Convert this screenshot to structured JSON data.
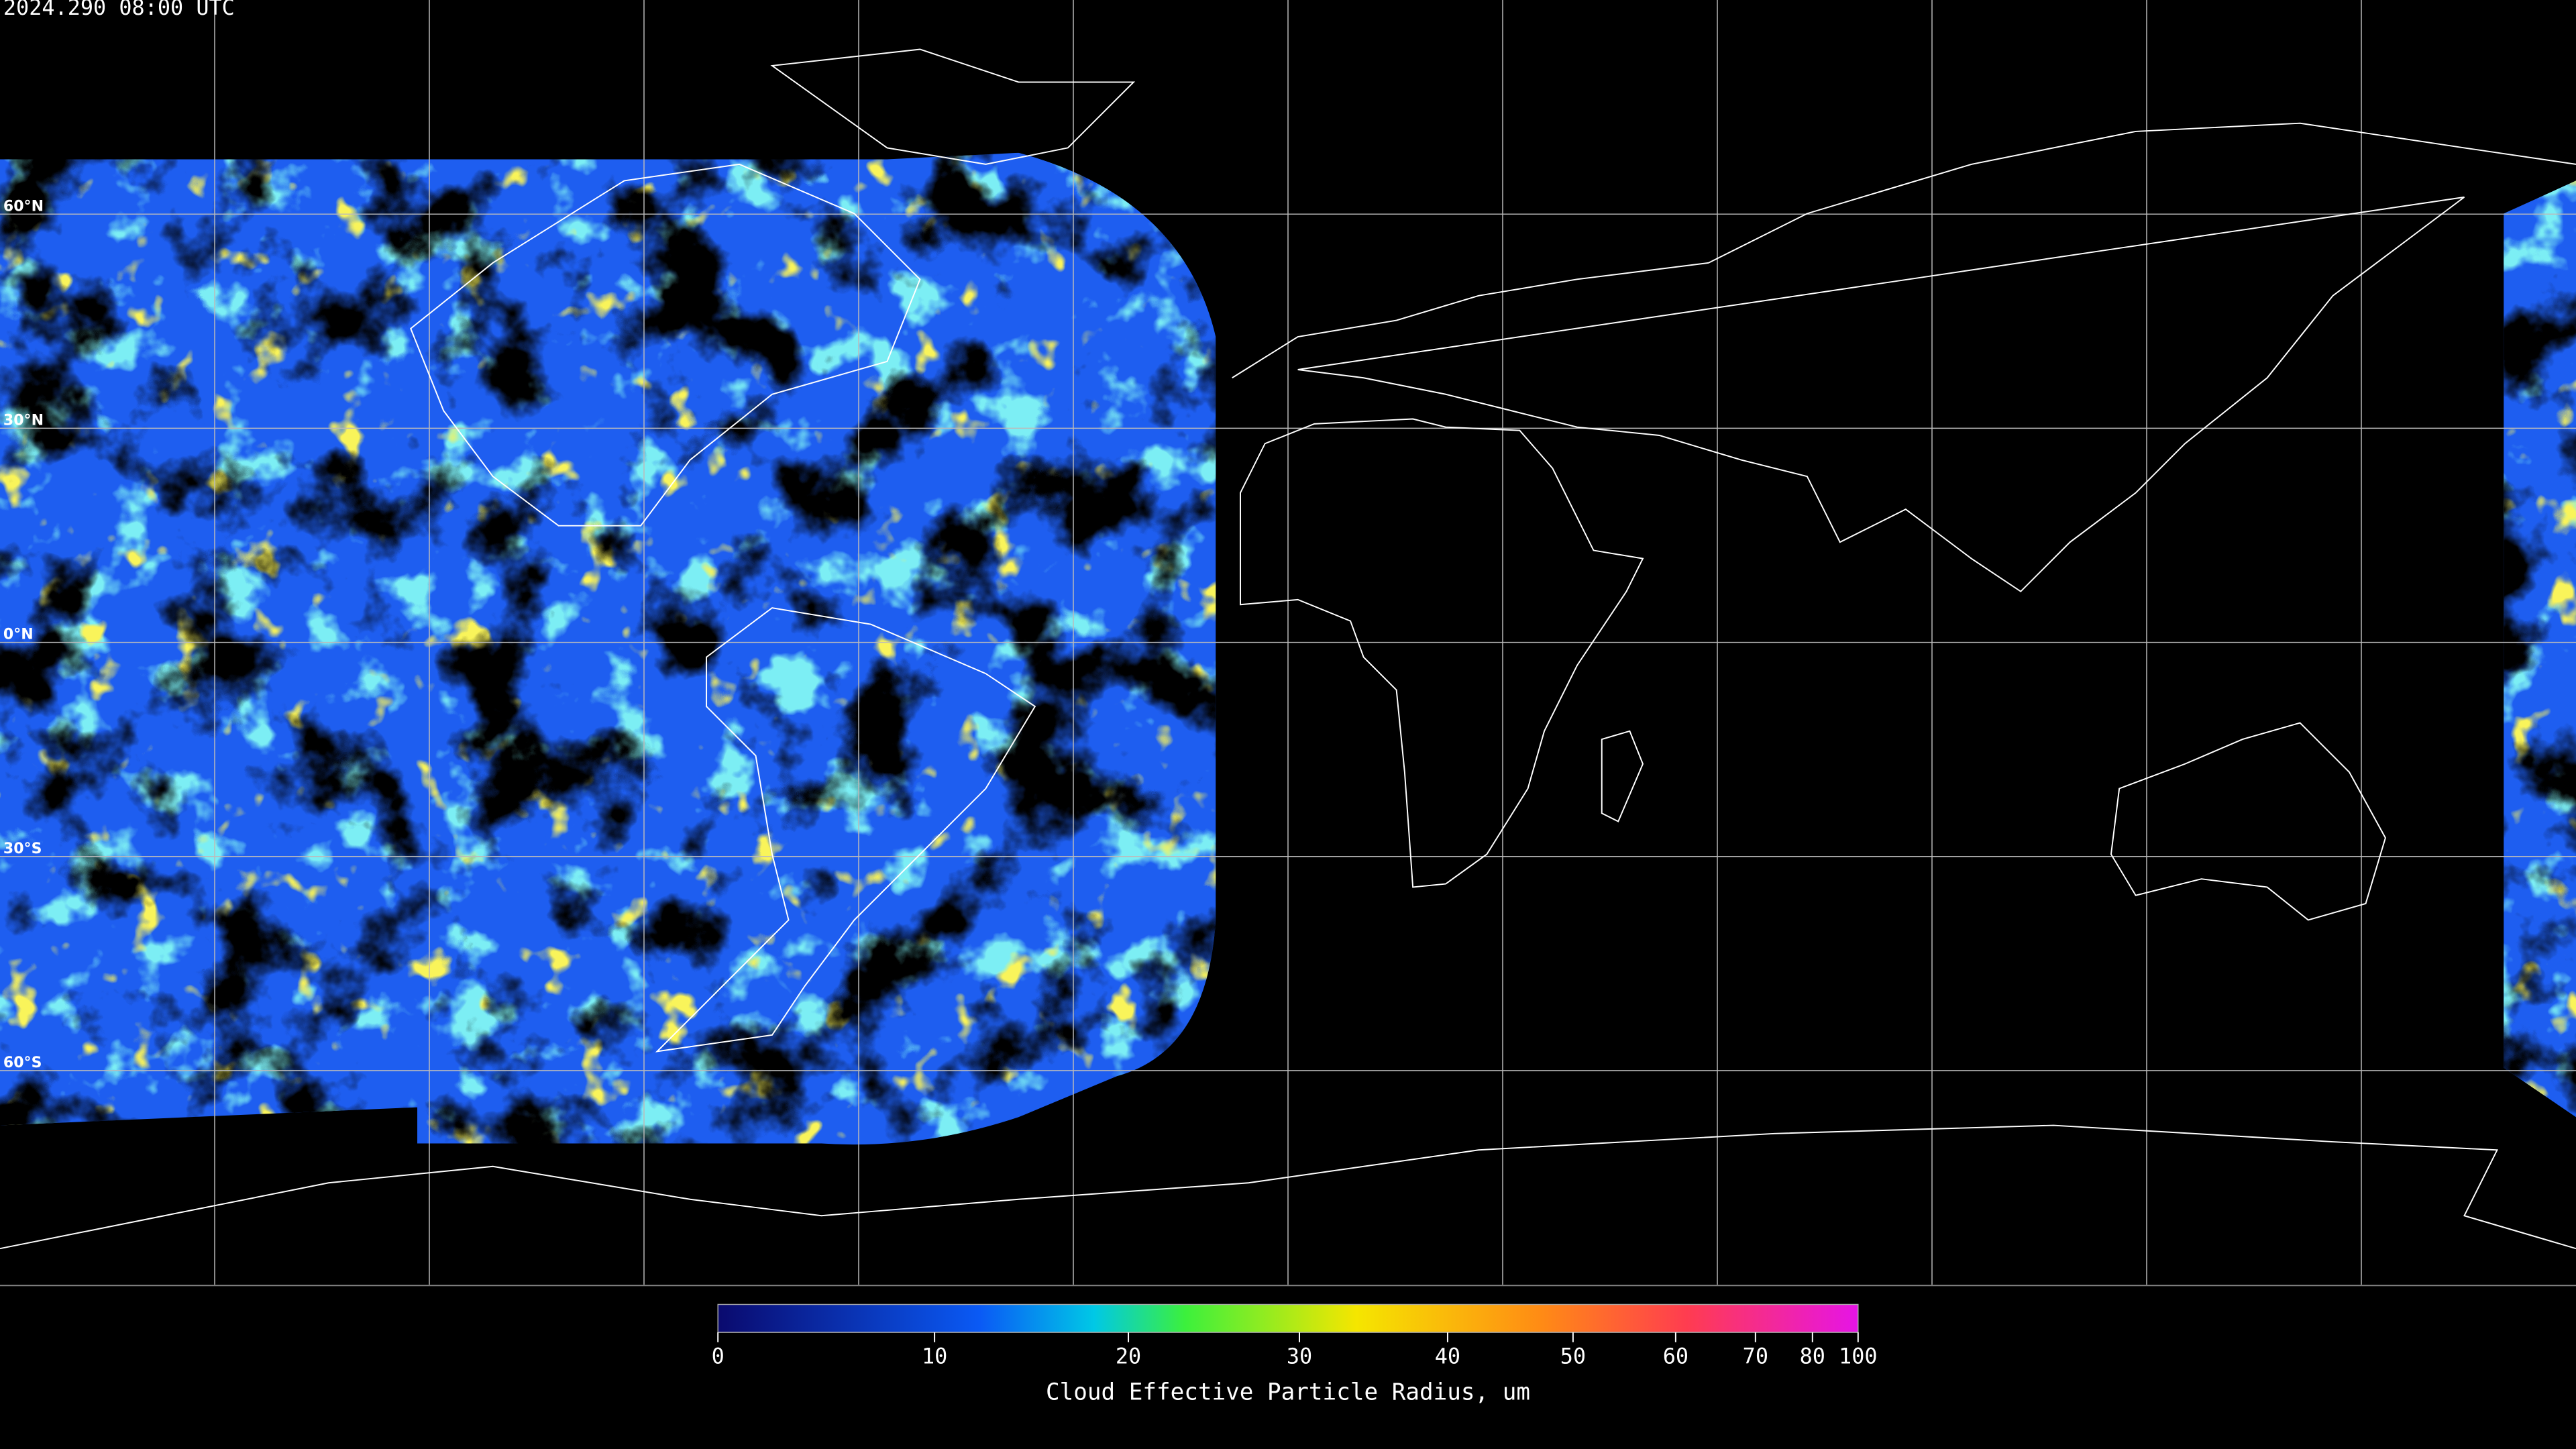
{
  "header": {
    "timestamp": "2024.290 08:00 UTC"
  },
  "map": {
    "latitude_labels": [
      "60°N",
      "30°N",
      "0°N",
      "30°S",
      "60°S"
    ]
  },
  "colorbar": {
    "label": "Cloud Effective Particle Radius, um",
    "range": [
      0,
      100
    ],
    "ticks": [
      0,
      10,
      20,
      30,
      40,
      50,
      60,
      70,
      80,
      100
    ]
  }
}
